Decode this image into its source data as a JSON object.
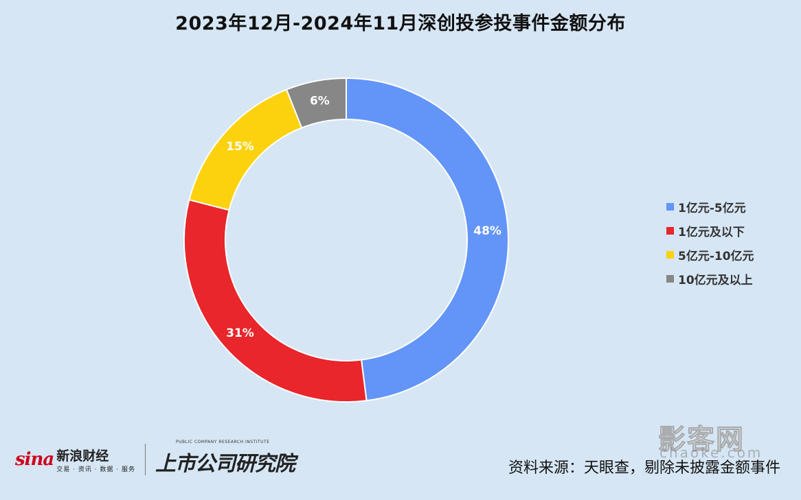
{
  "chart_data": {
    "type": "pie",
    "variant": "donut",
    "title": "2023年12月-2024年11月深创投参投事件金额分布",
    "categories": [
      "1亿元-5亿元",
      "1亿元及以下",
      "5亿元-10亿元",
      "10亿元及以上"
    ],
    "values": [
      48,
      31,
      15,
      6
    ],
    "value_labels": [
      "48%",
      "31%",
      "15%",
      "6%"
    ],
    "colors": [
      "#6395f9",
      "#e8262b",
      "#fcd20f",
      "#878787"
    ],
    "legend_position": "right"
  },
  "footer": {
    "sina_logo_text": "sina",
    "sina_name": "新浪财经",
    "sina_sub": "交易 · 资讯 · 数据 · 服务",
    "institute_small": "PUBLIC COMPANY RESEARCH INSTITUTE",
    "institute_name": "上市公司研究院",
    "watermark": "影客网",
    "watermark_sub": "chaoke.com",
    "source": "资料来源：天眼查，剔除未披露金额事件"
  }
}
